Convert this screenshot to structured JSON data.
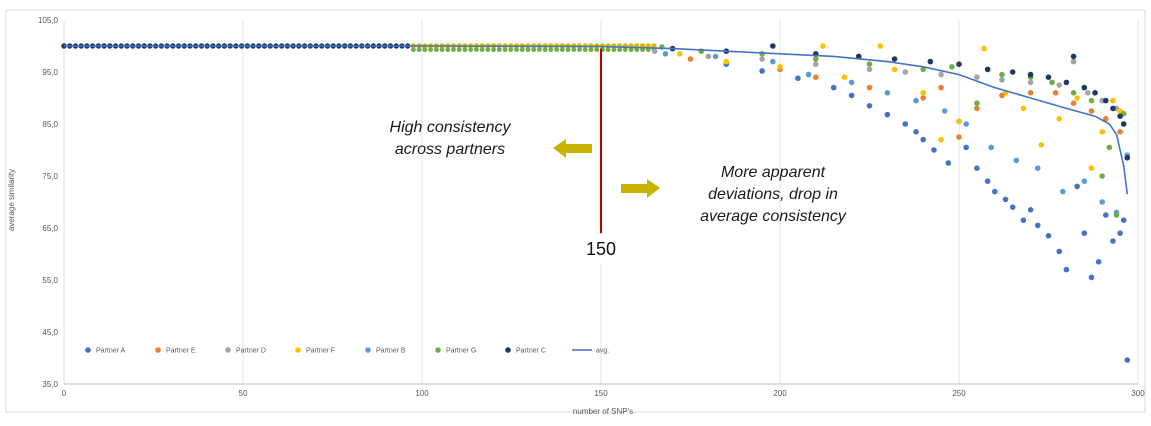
{
  "chart_data": {
    "type": "scatter",
    "xlabel": "number of SNP's",
    "ylabel": "average similarity",
    "xlim": [
      0,
      300
    ],
    "ylim": [
      35,
      105
    ],
    "x_ticks": [
      "0",
      "50",
      "100",
      "150",
      "200",
      "250",
      "300"
    ],
    "y_ticks": [
      "35,0",
      "45,0",
      "55,0",
      "65,0",
      "75,0",
      "85,0",
      "95,0",
      "105,0"
    ],
    "grid": "vertical",
    "legend_position": "bottom-left",
    "colors": {
      "Partner A": "#4472c4",
      "Partner E": "#ed7d31",
      "Partner D": "#a5a5a5",
      "Partner F": "#ffc000",
      "Partner B": "#5b9bd5",
      "Partner G": "#70ad47",
      "Partner C": "#1f3864",
      "avg.": "#4472c4",
      "marker_line": "#c00000",
      "arrow": "#c8b400"
    },
    "series": [
      {
        "name": "Partner A",
        "type": "scatter",
        "points": [
          [
            185,
            96.5
          ],
          [
            195,
            95.2
          ],
          [
            205,
            93.8
          ],
          [
            215,
            92.0
          ],
          [
            220,
            90.5
          ],
          [
            225,
            88.5
          ],
          [
            230,
            86.8
          ],
          [
            235,
            85.0
          ],
          [
            238,
            83.5
          ],
          [
            240,
            82.0
          ],
          [
            243,
            80.0
          ],
          [
            247,
            77.5
          ],
          [
            250,
            85.5
          ],
          [
            252,
            80.5
          ],
          [
            255,
            76.5
          ],
          [
            258,
            74.0
          ],
          [
            260,
            72.0
          ],
          [
            263,
            70.5
          ],
          [
            265,
            69.0
          ],
          [
            268,
            66.5
          ],
          [
            270,
            68.5
          ],
          [
            272,
            65.5
          ],
          [
            275,
            63.5
          ],
          [
            278,
            60.5
          ],
          [
            280,
            57.0
          ],
          [
            283,
            73.0
          ],
          [
            285,
            64.0
          ],
          [
            287,
            55.5
          ],
          [
            289,
            58.5
          ],
          [
            291,
            67.5
          ],
          [
            293,
            62.5
          ],
          [
            295,
            64.0
          ],
          [
            296,
            66.5
          ],
          [
            297,
            39.6
          ]
        ]
      },
      {
        "name": "Partner E",
        "type": "scatter",
        "points": [
          [
            175,
            97.5
          ],
          [
            200,
            95.5
          ],
          [
            210,
            94.0
          ],
          [
            225,
            92.0
          ],
          [
            240,
            90.0
          ],
          [
            245,
            92.0
          ],
          [
            250,
            82.5
          ],
          [
            255,
            88.0
          ],
          [
            262,
            90.5
          ],
          [
            270,
            91.0
          ],
          [
            277,
            91.0
          ],
          [
            282,
            89.0
          ],
          [
            287,
            87.5
          ],
          [
            291,
            86.0
          ],
          [
            295,
            83.5
          ]
        ]
      },
      {
        "name": "Partner D",
        "type": "scatter",
        "points": [
          [
            165,
            99.0
          ],
          [
            180,
            98.0
          ],
          [
            195,
            97.5
          ],
          [
            210,
            96.5
          ],
          [
            225,
            95.5
          ],
          [
            235,
            95.0
          ],
          [
            245,
            94.5
          ],
          [
            255,
            94.0
          ],
          [
            262,
            93.5
          ],
          [
            270,
            93.0
          ],
          [
            278,
            92.5
          ],
          [
            282,
            97.0
          ],
          [
            286,
            91.0
          ],
          [
            290,
            89.5
          ],
          [
            294,
            88.0
          ]
        ]
      },
      {
        "name": "Partner F",
        "type": "scatter",
        "points": [
          [
            172,
            98.5
          ],
          [
            185,
            97.0
          ],
          [
            200,
            96.0
          ],
          [
            212,
            100.0
          ],
          [
            218,
            94.0
          ],
          [
            228,
            100.0
          ],
          [
            232,
            95.5
          ],
          [
            240,
            91.0
          ],
          [
            245,
            82.0
          ],
          [
            250,
            85.5
          ],
          [
            257,
            99.5
          ],
          [
            263,
            91.0
          ],
          [
            268,
            88.0
          ],
          [
            273,
            81.0
          ],
          [
            278,
            86.0
          ],
          [
            283,
            90.0
          ],
          [
            287,
            76.5
          ],
          [
            290,
            83.5
          ],
          [
            293,
            89.5
          ],
          [
            295,
            87.5
          ]
        ]
      },
      {
        "name": "Partner B",
        "type": "scatter",
        "points": [
          [
            168,
            98.5
          ],
          [
            182,
            98.0
          ],
          [
            198,
            97.0
          ],
          [
            208,
            94.5
          ],
          [
            220,
            93.0
          ],
          [
            230,
            91.0
          ],
          [
            238,
            89.5
          ],
          [
            246,
            87.5
          ],
          [
            252,
            85.0
          ],
          [
            259,
            80.5
          ],
          [
            266,
            78.0
          ],
          [
            272,
            76.5
          ],
          [
            279,
            72.0
          ],
          [
            285,
            74.0
          ],
          [
            290,
            70.0
          ],
          [
            294,
            68.0
          ],
          [
            297,
            79.0
          ]
        ]
      },
      {
        "name": "Partner G",
        "type": "scatter",
        "points": [
          [
            167,
            99.8
          ],
          [
            178,
            99.0
          ],
          [
            195,
            98.5
          ],
          [
            210,
            97.5
          ],
          [
            225,
            96.5
          ],
          [
            240,
            95.5
          ],
          [
            248,
            96.0
          ],
          [
            255,
            89.0
          ],
          [
            262,
            94.5
          ],
          [
            270,
            94.0
          ],
          [
            276,
            93.0
          ],
          [
            282,
            91.0
          ],
          [
            287,
            89.5
          ],
          [
            290,
            75.0
          ],
          [
            292,
            80.5
          ],
          [
            294,
            67.5
          ],
          [
            296,
            87.0
          ]
        ]
      },
      {
        "name": "Partner C",
        "type": "scatter",
        "points": [
          [
            170,
            99.5
          ],
          [
            185,
            99.0
          ],
          [
            198,
            100.0
          ],
          [
            210,
            98.5
          ],
          [
            222,
            98.0
          ],
          [
            232,
            97.5
          ],
          [
            242,
            97.0
          ],
          [
            250,
            96.5
          ],
          [
            258,
            95.5
          ],
          [
            265,
            95.0
          ],
          [
            270,
            94.5
          ],
          [
            275,
            94.0
          ],
          [
            280,
            93.0
          ],
          [
            282,
            98.0
          ],
          [
            285,
            92.0
          ],
          [
            288,
            91.0
          ],
          [
            291,
            89.5
          ],
          [
            293,
            88.0
          ],
          [
            295,
            86.5
          ],
          [
            296,
            85.0
          ],
          [
            297,
            78.5
          ]
        ]
      },
      {
        "name": "avg.",
        "type": "line",
        "points": [
          [
            0,
            100
          ],
          [
            100,
            100
          ],
          [
            150,
            99.9
          ],
          [
            170,
            99.5
          ],
          [
            185,
            99.0
          ],
          [
            200,
            98.5
          ],
          [
            215,
            98.0
          ],
          [
            230,
            97.0
          ],
          [
            240,
            96.0
          ],
          [
            250,
            94.5
          ],
          [
            260,
            92.0
          ],
          [
            270,
            90.0
          ],
          [
            280,
            88.0
          ],
          [
            288,
            86.5
          ],
          [
            292,
            85.0
          ],
          [
            294,
            83.0
          ],
          [
            295,
            80.0
          ],
          [
            296,
            77.0
          ],
          [
            297,
            71.5
          ]
        ]
      }
    ],
    "marker": {
      "x": 150,
      "label": "150"
    },
    "annotations": [
      {
        "id": "left",
        "lines": [
          "High consistency",
          "across partners"
        ]
      },
      {
        "id": "right",
        "lines": [
          "More apparent",
          "deviations, drop in",
          "average consistency"
        ]
      }
    ]
  }
}
